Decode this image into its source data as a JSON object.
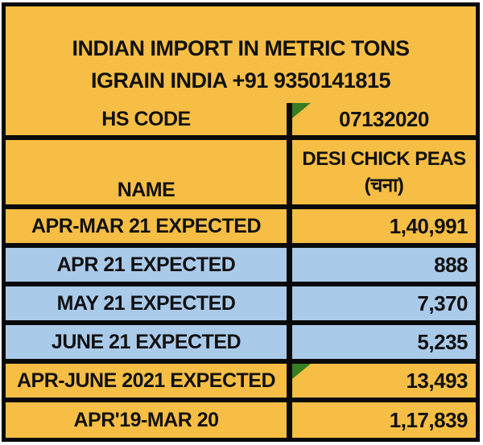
{
  "colors": {
    "orange": "#F6BE44",
    "blue": "#AACAEA",
    "border": "#0a0a0a",
    "comment_triangle_green": "#377D22",
    "text": "#111111"
  },
  "header": {
    "line1": "INDIAN IMPORT IN METRIC TONS",
    "line2": "IGRAIN INDIA +91 9350141815"
  },
  "table": {
    "rows": [
      {
        "kind": "hs",
        "bg": "orange",
        "label": "HS CODE",
        "value": "07132020",
        "value_align": "center",
        "triangle": true
      },
      {
        "kind": "name",
        "bg": "orange",
        "label": "NAME",
        "value_lines": [
          "DESI CHICK PEAS",
          "(चना)"
        ],
        "value_align": "center",
        "label_valign": "bottom",
        "triangle": false
      },
      {
        "kind": "data",
        "bg": "orange",
        "label": "APR-MAR 21 EXPECTED",
        "value": "1,40,991",
        "value_align": "right",
        "triangle": false
      },
      {
        "kind": "data",
        "bg": "blue",
        "label": "APR 21 EXPECTED",
        "value": "888",
        "value_align": "right",
        "triangle": false
      },
      {
        "kind": "data",
        "bg": "blue",
        "label": "MAY 21 EXPECTED",
        "value": "7,370",
        "value_align": "right",
        "triangle": false
      },
      {
        "kind": "data",
        "bg": "blue",
        "label": "JUNE 21 EXPECTED",
        "value": "5,235",
        "value_align": "right",
        "triangle": false
      },
      {
        "kind": "data",
        "bg": "orange",
        "label": "APR-JUNE 2021 EXPECTED",
        "value": "13,493",
        "value_align": "right",
        "triangle": true
      },
      {
        "kind": "data-last",
        "bg": "orange",
        "label": "APR'19-MAR 20",
        "value": "1,17,839",
        "value_align": "right",
        "triangle": false
      }
    ]
  }
}
